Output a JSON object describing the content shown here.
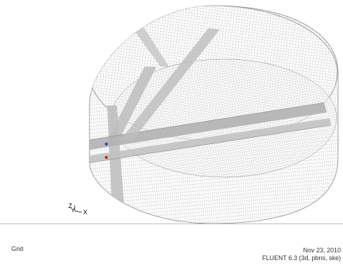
{
  "viewport": {
    "mesh_color": "#8f8f8f",
    "surface_band_color": "#b5b5b5",
    "point_markers": [
      {
        "name": "blue-point",
        "color": "#2b4cd6"
      },
      {
        "name": "red-point",
        "color": "#d62020"
      }
    ],
    "triad": {
      "z_label": "Z",
      "y_label": "Y",
      "x_label": "X"
    }
  },
  "footer": {
    "label": "Grid",
    "date": "Nov 23, 2010",
    "solver": "FLUENT 6.3 (3d, pbns, ske)"
  }
}
